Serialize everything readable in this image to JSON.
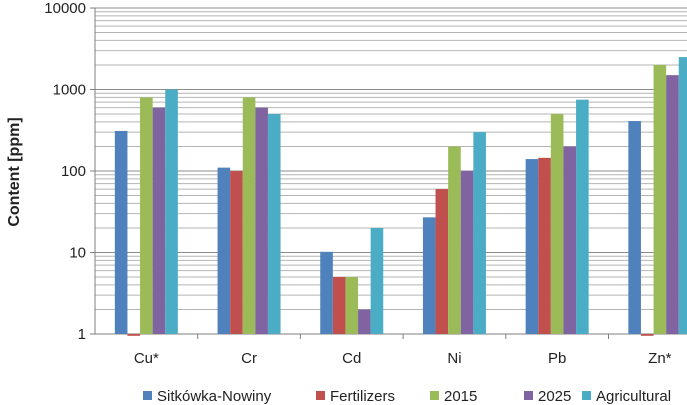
{
  "chart_data": {
    "type": "bar",
    "scale": "log",
    "title": "",
    "xlabel": "",
    "ylabel": "Content [ppm]",
    "ylim": [
      1,
      10000
    ],
    "yticks": [
      "1",
      "10",
      "100",
      "1000",
      "10000"
    ],
    "grid": true,
    "legend_position": "bottom",
    "categories": [
      "Cu*",
      "Cr",
      "Cd",
      "Ni",
      "Pb",
      "Zn*"
    ],
    "series": [
      {
        "name": "Sitkówka-Nowiny",
        "color": "#4F81BD",
        "values": [
          310,
          110,
          10.2,
          27,
          140,
          410
        ]
      },
      {
        "name": "Fertilizers",
        "color": "#C0504D",
        "values": [
          0.95,
          100,
          5,
          60,
          145,
          0.95
        ]
      },
      {
        "name": "2015",
        "color": "#9BBB59",
        "values": [
          800,
          800,
          5,
          200,
          500,
          2000
        ]
      },
      {
        "name": "2025",
        "color": "#8064A2",
        "values": [
          600,
          600,
          2,
          100,
          200,
          1500
        ]
      },
      {
        "name": "Agricultural",
        "color": "#4BACC6",
        "values": [
          1000,
          500,
          20,
          300,
          750,
          2500
        ]
      }
    ]
  }
}
